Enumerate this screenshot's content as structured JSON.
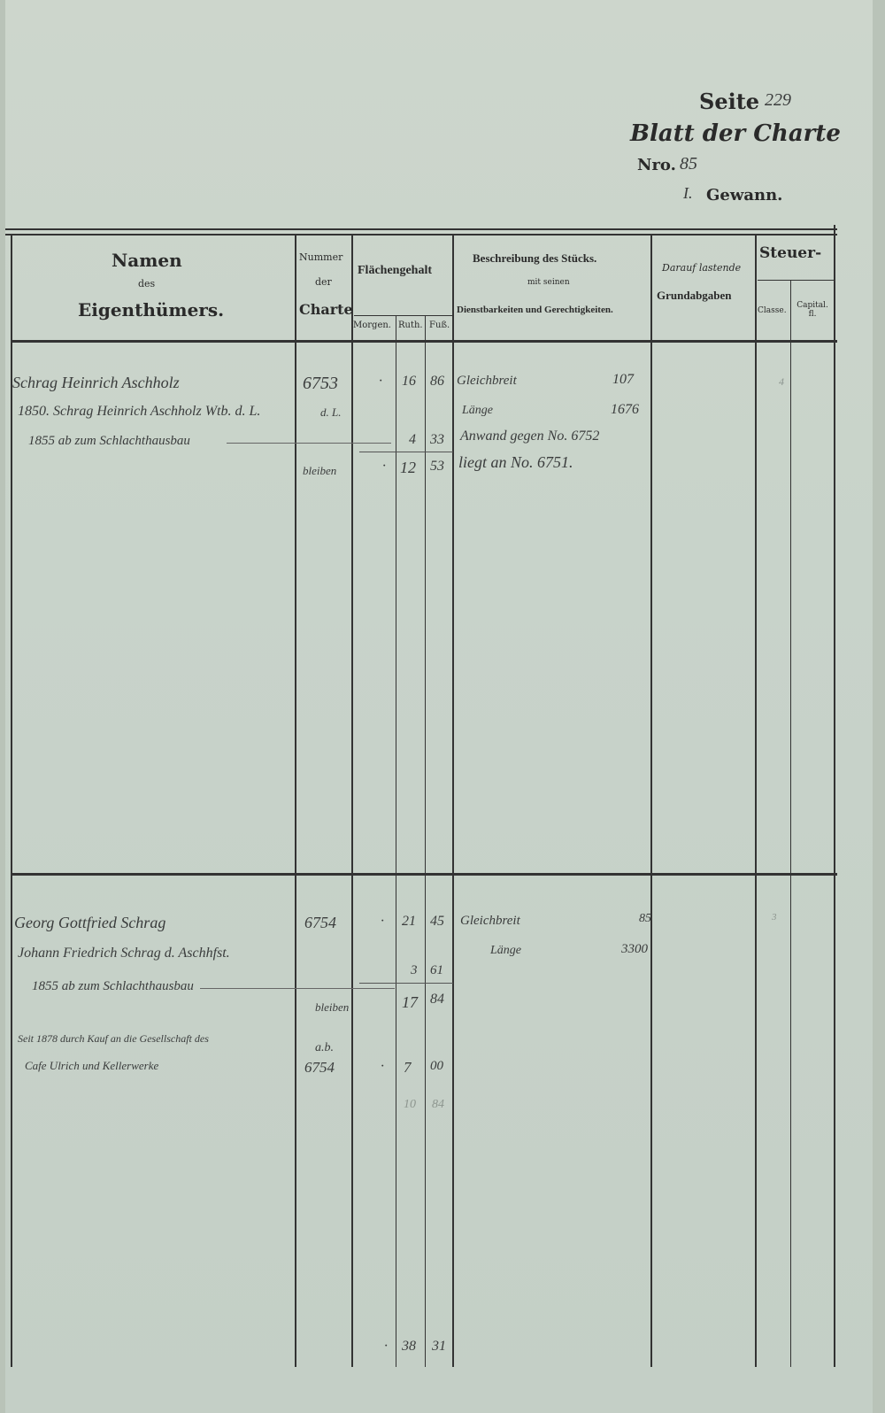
{
  "header": {
    "seite_label": "Seite",
    "seite_value": "229",
    "blatt_label": "Blatt der Charte",
    "nro_label": "Nro.",
    "nro_value": "85",
    "gewann_value": "I.",
    "gewann_label": "Gewann."
  },
  "columns": {
    "namen": [
      "Namen",
      "des",
      "Eigenthümers."
    ],
    "nummer": [
      "Nummer",
      "der",
      "Charte"
    ],
    "flaechen": "Flächengehalt",
    "flaechen_sub": [
      "Morgen.",
      "Ruth.",
      "Fuß."
    ],
    "beschreibung": [
      "Beschreibung des Stücks.",
      "mit seinen",
      "Dienstbarkeiten und Gerechtigkeiten."
    ],
    "darauf": [
      "Darauf lastende",
      "Grundabgaben"
    ],
    "steuer": "Steuer-",
    "steuer_sub": [
      "Classe.",
      "Capital. fl."
    ]
  },
  "entries": [
    {
      "name_lines": [
        "Schrag Heinrich Aschholz",
        "1850. Schrag Heinrich Aschholz Wtb. d. L.",
        "1855 ab zum Schlachthausbau"
      ],
      "nummer": "6753",
      "nummer2": "d. L.",
      "bleiben": "bleiben",
      "rows": [
        [
          "·",
          "16",
          "86"
        ],
        [
          "",
          "4",
          "33"
        ],
        [
          "·",
          "12",
          "53"
        ]
      ],
      "beschreibung": [
        "Gleichbreit",
        "Länge",
        "Anwand gegen No. 6752",
        "liegt an No. 6751."
      ],
      "beschreibung_vals": [
        "107",
        "1676"
      ],
      "classe": "4"
    },
    {
      "name_lines": [
        "Georg Gottfried Schrag",
        "Johann Friedrich Schrag d. Aschhfst.",
        "1855 ab zum Schlachthausbau",
        "Seit 1878 durch Kauf an die Gesellschaft des",
        "Cafe Ulrich und Kellerwerke"
      ],
      "nummer": "6754",
      "bleiben": "bleiben",
      "ab_label": "a.b.",
      "nummer_ab": "6754",
      "rows": [
        [
          "·",
          "21",
          "45"
        ],
        [
          "",
          "3",
          "61"
        ],
        [
          "",
          "17",
          "84"
        ],
        [
          "·",
          "7",
          "00"
        ],
        [
          "",
          "10",
          "84"
        ]
      ],
      "beschreibung": [
        "Gleichbreit",
        "Länge"
      ],
      "beschreibung_vals": [
        "85",
        "3300"
      ],
      "classe": "3"
    }
  ],
  "total": {
    "morgen": "·",
    "ruth": "38",
    "fuss": "31"
  }
}
